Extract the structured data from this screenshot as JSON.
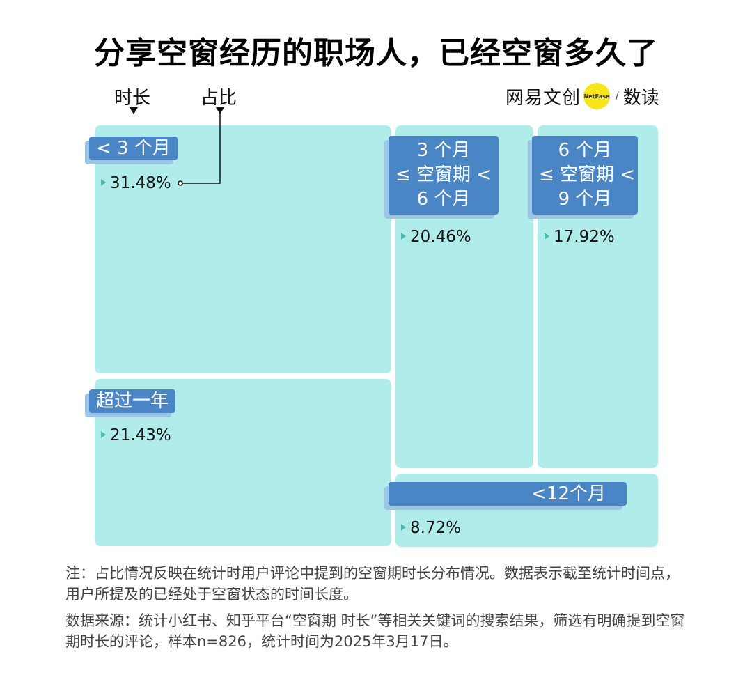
{
  "header": {
    "title": "分享空窗经历的职场人，已经空窗多久了",
    "axis_duration": "时长",
    "axis_share": "占比"
  },
  "brand": {
    "main": "网易文创",
    "dot": "NetEase",
    "slash": "/",
    "sub": "数读"
  },
  "chart_data": {
    "type": "treemap",
    "unit": "%",
    "items": [
      {
        "label": "< 3 个月",
        "value": 31.48,
        "value_text": "31.48%"
      },
      {
        "label": "超过一年",
        "value": 21.43,
        "value_text": "21.43%"
      },
      {
        "label": "3 个月\n≤ 空窗期 <\n6 个月",
        "value": 20.46,
        "value_text": "20.46%"
      },
      {
        "label": "6 个月\n≤ 空窗期 <\n9 个月",
        "value": 17.92,
        "value_text": "17.92%"
      },
      {
        "label": "<12个月",
        "value": 8.72,
        "value_text": "8.72%"
      }
    ],
    "colors": {
      "cell": "#b0ecea",
      "tag": "#4a86c6",
      "tag_shadow": "#9cc4e4",
      "marker": "#49b7b2"
    }
  },
  "notes": {
    "note": "注：占比情况反映在统计时用户评论中提到的空窗期时长分布情况。数据表示截至统计时间点，用户所提及的已经处于空窗状态的时间长度。",
    "source": "数据来源：统计小红书、知乎平台“空窗期 时长”等相关关键词的搜索结果，筛选有明确提到空窗期时长的评论，样本n=826，统计时间为2025年3月17日。"
  }
}
